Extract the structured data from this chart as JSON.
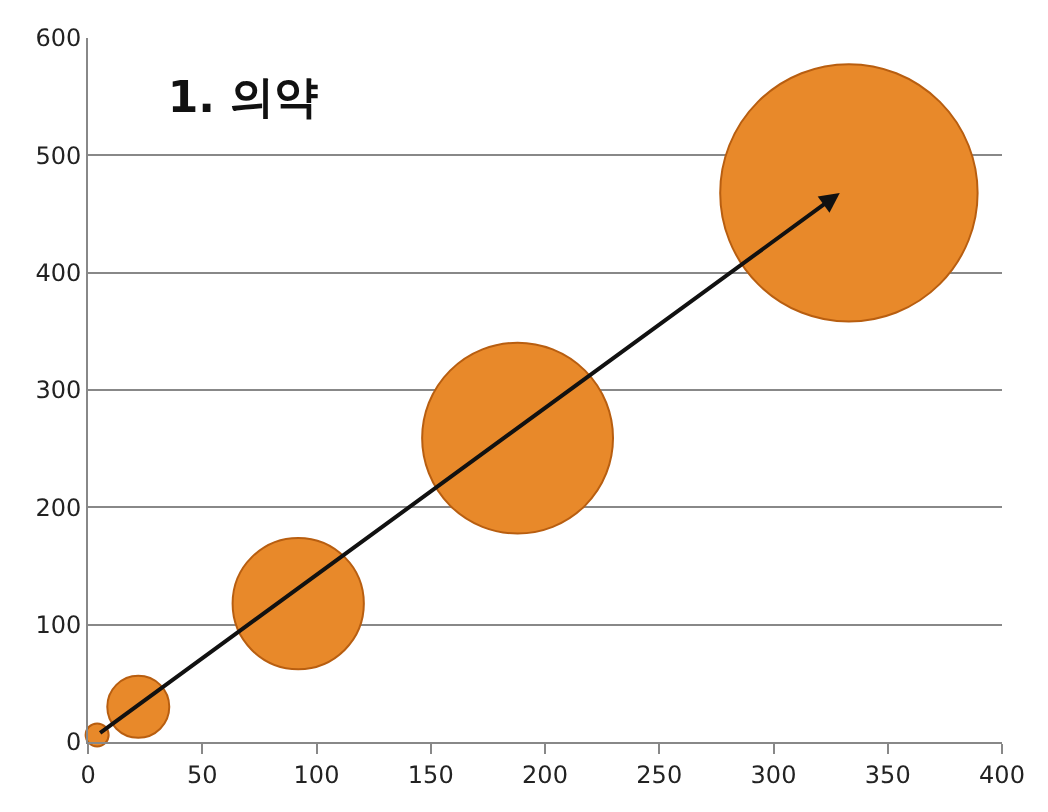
{
  "chart_data": {
    "type": "bubble",
    "title": "1. 의약",
    "x": [
      4,
      22,
      92,
      188,
      333
    ],
    "values": [
      6,
      30,
      118,
      259,
      468
    ],
    "sizes": [
      0.008,
      0.058,
      0.26,
      0.55,
      1
    ],
    "color": "#e8892a",
    "xlim": [
      0,
      400
    ],
    "xticks": [
      0,
      50,
      100,
      150,
      200,
      250,
      300,
      350,
      400
    ],
    "ylim": [
      0,
      600
    ],
    "yticks": [
      0,
      100,
      200,
      300,
      400,
      500,
      600
    ],
    "grid": "y",
    "legend": false
  }
}
